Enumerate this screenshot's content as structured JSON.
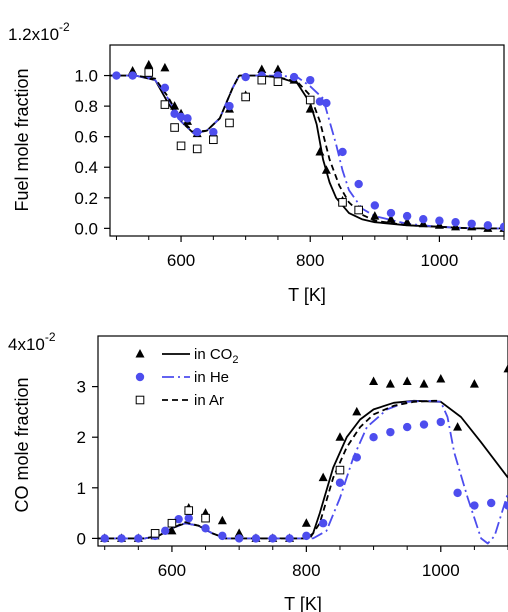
{
  "chart_data": [
    {
      "type": "scatter",
      "xlabel": "T [K]",
      "ylabel": "Fuel mole fraction",
      "y_scale_label": "1.2x10",
      "y_scale_exp": "-2",
      "xlim": [
        490,
        1100
      ],
      "ylim": [
        -0.05,
        1.2
      ],
      "xticks": [
        600,
        800,
        1000
      ],
      "yticks": [
        0.0,
        0.2,
        0.4,
        0.6,
        0.8,
        1.0
      ],
      "ytick_labels": [
        "0.0",
        "0.2",
        "0.4",
        "0.6",
        "0.8",
        "1.0"
      ],
      "series": [
        {
          "name": "in CO2 (exp)",
          "marker": "triangle",
          "color": "#000000",
          "x": [
            525,
            550,
            575,
            590,
            600,
            610,
            625,
            650,
            675,
            700,
            725,
            750,
            775,
            800,
            815,
            825,
            850,
            875,
            900,
            925,
            950,
            975,
            1000,
            1025,
            1050,
            1075,
            1100
          ],
          "y": [
            1.03,
            1.07,
            1.05,
            0.8,
            0.75,
            0.7,
            0.62,
            0.62,
            0.78,
            0.87,
            1.04,
            1.04,
            0.97,
            0.78,
            0.5,
            0.38,
            0.18,
            0.12,
            0.08,
            0.06,
            0.04,
            0.03,
            0.02,
            0.01,
            0.01,
            0.0,
            0.0
          ]
        },
        {
          "name": "in He (exp)",
          "marker": "circle",
          "color": "#4d4dee",
          "x": [
            500,
            525,
            550,
            575,
            590,
            600,
            610,
            625,
            650,
            675,
            700,
            725,
            750,
            775,
            800,
            815,
            825,
            850,
            875,
            900,
            925,
            950,
            975,
            1000,
            1025,
            1050,
            1075,
            1100
          ],
          "y": [
            1.0,
            1.0,
            1.01,
            0.92,
            0.75,
            0.73,
            0.72,
            0.63,
            0.63,
            0.8,
            0.99,
            1.0,
            1.0,
            0.99,
            0.97,
            0.83,
            0.82,
            0.5,
            0.29,
            0.15,
            0.1,
            0.08,
            0.06,
            0.05,
            0.04,
            0.03,
            0.02,
            0.01
          ]
        },
        {
          "name": "in Ar (exp)",
          "marker": "open-square",
          "color": "#000000",
          "x": [
            550,
            575,
            590,
            600,
            625,
            650,
            675,
            700,
            725,
            750,
            800,
            850,
            875
          ],
          "y": [
            1.02,
            0.81,
            0.66,
            0.54,
            0.52,
            0.58,
            0.69,
            0.86,
            0.97,
            0.96,
            0.84,
            0.17,
            0.12
          ]
        },
        {
          "name": "in CO2 (model)",
          "line": "solid",
          "color": "#000000",
          "x": [
            490,
            530,
            560,
            580,
            600,
            620,
            640,
            660,
            680,
            690,
            700,
            720,
            750,
            780,
            800,
            810,
            820,
            830,
            840,
            860,
            880,
            900,
            950,
            1000,
            1050,
            1100
          ],
          "y": [
            1.0,
            1.0,
            0.97,
            0.82,
            0.7,
            0.62,
            0.64,
            0.72,
            0.92,
            1.0,
            1.0,
            1.0,
            0.99,
            0.95,
            0.82,
            0.68,
            0.45,
            0.3,
            0.2,
            0.1,
            0.06,
            0.04,
            0.02,
            0.01,
            0.0,
            0.0
          ]
        },
        {
          "name": "in He (model)",
          "line": "dash-dot",
          "color": "#4d4dee",
          "x": [
            490,
            530,
            560,
            580,
            600,
            620,
            640,
            660,
            680,
            690,
            700,
            720,
            750,
            780,
            800,
            820,
            840,
            850,
            860,
            880,
            900,
            950,
            1000,
            1050,
            1100
          ],
          "y": [
            1.0,
            1.0,
            0.97,
            0.85,
            0.7,
            0.62,
            0.64,
            0.72,
            0.92,
            1.0,
            1.0,
            1.0,
            1.0,
            0.99,
            0.93,
            0.85,
            0.55,
            0.38,
            0.25,
            0.13,
            0.08,
            0.03,
            0.01,
            0.0,
            0.0
          ]
        },
        {
          "name": "in Ar (model)",
          "line": "dashed",
          "color": "#000000",
          "x": [
            490,
            530,
            560,
            580,
            600,
            620,
            640,
            660,
            680,
            690,
            700,
            720,
            750,
            780,
            800,
            815,
            830,
            845,
            860,
            880,
            900,
            950,
            1000,
            1050,
            1100
          ],
          "y": [
            1.0,
            1.0,
            0.98,
            0.86,
            0.71,
            0.63,
            0.64,
            0.72,
            0.92,
            1.0,
            1.0,
            1.0,
            0.99,
            0.96,
            0.87,
            0.7,
            0.45,
            0.28,
            0.17,
            0.09,
            0.05,
            0.02,
            0.01,
            0.0,
            0.0
          ]
        }
      ]
    },
    {
      "type": "scatter",
      "xlabel": "T [K]",
      "ylabel": "CO mole fraction",
      "y_scale_label": "4x10",
      "y_scale_exp": "-2",
      "xlim": [
        490,
        1100
      ],
      "ylim": [
        -0.15,
        4.0
      ],
      "xticks": [
        600,
        800,
        1000
      ],
      "yticks": [
        0,
        1,
        2,
        3
      ],
      "ytick_labels": [
        "0",
        "1",
        "2",
        "3"
      ],
      "legend": {
        "position": "top-left",
        "entries": [
          {
            "label": "in CO",
            "sub": "2",
            "marker": "triangle",
            "line": "solid",
            "color": "#000000"
          },
          {
            "label": "in He",
            "sub": "",
            "marker": "circle",
            "line": "dash-dot",
            "color": "#4d4dee"
          },
          {
            "label": "in Ar",
            "sub": "",
            "marker": "open-square",
            "line": "dashed",
            "color": "#000000"
          }
        ]
      },
      "series": [
        {
          "name": "in CO2 (exp)",
          "marker": "triangle",
          "color": "#000000",
          "x": [
            500,
            525,
            550,
            575,
            600,
            625,
            650,
            675,
            700,
            725,
            750,
            775,
            800,
            825,
            850,
            875,
            900,
            925,
            950,
            975,
            1000,
            1025,
            1050,
            1100
          ],
          "y": [
            0.0,
            0.0,
            0.0,
            0.05,
            0.15,
            0.6,
            0.5,
            0.35,
            0.1,
            0.0,
            0.0,
            0.0,
            0.3,
            1.2,
            2.0,
            2.5,
            3.1,
            3.05,
            3.1,
            3.05,
            3.15,
            2.2,
            3.05,
            3.35
          ]
        },
        {
          "name": "in He (exp)",
          "marker": "circle",
          "color": "#4d4dee",
          "x": [
            500,
            525,
            550,
            575,
            590,
            600,
            610,
            625,
            650,
            675,
            700,
            725,
            750,
            775,
            800,
            825,
            850,
            875,
            900,
            925,
            950,
            975,
            1000,
            1025,
            1050,
            1075,
            1100
          ],
          "y": [
            0.0,
            0.0,
            0.0,
            0.05,
            0.15,
            0.3,
            0.38,
            0.4,
            0.2,
            0.05,
            0.0,
            0.0,
            0.0,
            0.0,
            0.05,
            0.3,
            1.1,
            1.6,
            2.0,
            2.1,
            2.2,
            2.25,
            2.3,
            0.9,
            0.65,
            0.7,
            0.65
          ]
        },
        {
          "name": "in Ar (exp)",
          "marker": "open-square",
          "color": "#000000",
          "x": [
            575,
            600,
            625,
            650,
            850
          ],
          "y": [
            0.1,
            0.3,
            0.55,
            0.4,
            1.35
          ]
        },
        {
          "name": "in CO2 (model)",
          "line": "solid",
          "color": "#000000",
          "x": [
            490,
            560,
            580,
            600,
            620,
            640,
            660,
            680,
            700,
            800,
            810,
            820,
            840,
            860,
            880,
            900,
            930,
            960,
            1000,
            1030,
            1060,
            1100
          ],
          "y": [
            0.0,
            0.0,
            0.05,
            0.2,
            0.3,
            0.25,
            0.1,
            0.0,
            0.0,
            0.0,
            0.1,
            0.5,
            1.4,
            2.0,
            2.35,
            2.55,
            2.68,
            2.72,
            2.7,
            2.4,
            1.9,
            1.2
          ]
        },
        {
          "name": "in He (model)",
          "line": "dash-dot",
          "color": "#4d4dee",
          "x": [
            490,
            560,
            580,
            600,
            620,
            640,
            660,
            680,
            700,
            810,
            830,
            850,
            870,
            890,
            920,
            950,
            980,
            1000,
            1010,
            1020,
            1040,
            1060,
            1070,
            1080,
            1100
          ],
          "y": [
            0.0,
            0.0,
            0.05,
            0.2,
            0.3,
            0.25,
            0.1,
            0.0,
            0.0,
            0.0,
            0.15,
            0.8,
            1.6,
            2.2,
            2.55,
            2.7,
            2.72,
            2.7,
            2.4,
            1.7,
            0.8,
            0.0,
            -0.1,
            0.05,
            0.9
          ]
        },
        {
          "name": "in Ar (model)",
          "line": "dashed",
          "color": "#000000",
          "x": [
            490,
            560,
            580,
            600,
            620,
            640,
            660,
            680,
            700,
            805,
            820,
            840,
            860,
            880,
            900,
            930,
            960,
            990,
            1000
          ],
          "y": [
            0.0,
            0.0,
            0.05,
            0.2,
            0.32,
            0.25,
            0.1,
            0.0,
            0.0,
            0.0,
            0.3,
            1.2,
            1.8,
            2.2,
            2.45,
            2.62,
            2.7,
            2.72,
            2.72
          ]
        }
      ]
    }
  ]
}
